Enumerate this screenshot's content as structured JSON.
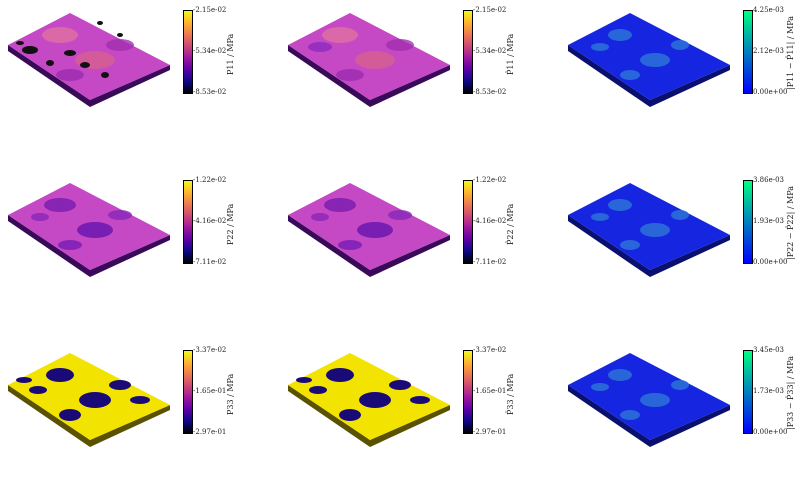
{
  "colors": {
    "plasma": [
      "#0d0887",
      "#5c01a6",
      "#9c179e",
      "#cc4778",
      "#ed7953",
      "#fdb42f",
      "#f0f921"
    ],
    "winter": [
      "#0000ff",
      "#00ff80"
    ],
    "error_bg": "#1626e0",
    "stress_bg": "#c043c8",
    "p33_bg": "#f2e400",
    "inclusion_dark": "#1a0a78"
  },
  "panels": [
    {
      "label": "P11 / MPa",
      "ticks": [
        "-2.15e-02",
        "-5.34e-02",
        "-8.53e-02"
      ],
      "cmap": "plasma"
    },
    {
      "label": "P̂11 / MPa",
      "ticks": [
        "-2.15e-02",
        "-5.34e-02",
        "-8.53e-02"
      ],
      "cmap": "plasma"
    },
    {
      "label": "|P11 − P̂11| / MPa",
      "ticks": [
        "4.25e-03",
        "2.12e-03",
        "0.00e+00"
      ],
      "cmap": "winter"
    },
    {
      "label": "P22 / MPa",
      "ticks": [
        "-1.22e-02",
        "-4.16e-02",
        "-7.11e-02"
      ],
      "cmap": "plasma"
    },
    {
      "label": "P̂22 / MPa",
      "ticks": [
        "-1.22e-02",
        "-4.16e-02",
        "-7.11e-02"
      ],
      "cmap": "plasma"
    },
    {
      "label": "|P22 − P̂22| / MPa",
      "ticks": [
        "3.86e-03",
        "1.93e-03",
        "0.00e+00"
      ],
      "cmap": "winter"
    },
    {
      "label": "P33 / MPa",
      "ticks": [
        "-3.37e-02",
        "-1.65e-01",
        "-2.97e-01"
      ],
      "cmap": "plasma"
    },
    {
      "label": "P̂33 / MPa",
      "ticks": [
        "-3.37e-02",
        "-1.65e-01",
        "-2.97e-01"
      ],
      "cmap": "plasma"
    },
    {
      "label": "|P33 − P̂33| / MPa",
      "ticks": [
        "3.45e-03",
        "1.73e-03",
        "0.00e+00"
      ],
      "cmap": "winter"
    }
  ]
}
